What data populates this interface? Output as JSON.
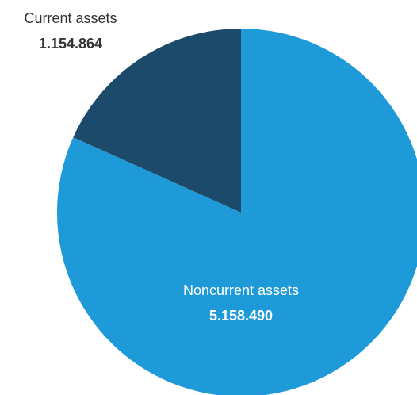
{
  "chart_data": {
    "type": "pie",
    "start_angle": "12 o'clock",
    "direction": "clockwise",
    "slices": [
      {
        "label": "Noncurrent assets",
        "value_text": "5.158.490",
        "value": 5158490,
        "color": "#1f9ad8",
        "label_color": "#ffffff",
        "label_placement": "inside"
      },
      {
        "label": "Current assets",
        "value_text": "1.154.864",
        "value": 1154864,
        "color": "#1b4a6b",
        "label_color": "#333333",
        "label_placement": "outside-top-left"
      }
    ]
  }
}
